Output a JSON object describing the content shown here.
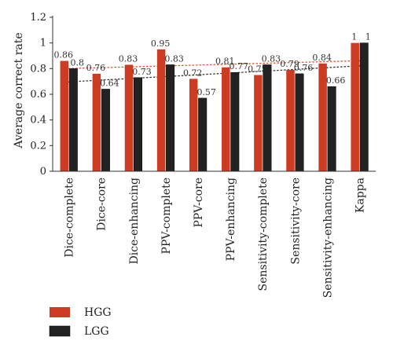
{
  "chart_data": {
    "type": "bar",
    "ylabel": "Average correct rate",
    "ylim": [
      0,
      1.2
    ],
    "yticks": [
      "0",
      "0.2",
      "0.4",
      "0.6",
      "0.8",
      "1",
      "1.2"
    ],
    "categories": [
      "Dice-complete",
      "Dice-core",
      "Dice-enhancing",
      "PPV-complete",
      "PPV-core",
      "PPV-enhancing",
      "Sensitivity-complete",
      "Sensitivity-core",
      "Sensitivity-enhancing",
      "Kappa"
    ],
    "series": [
      {
        "name": "HGG",
        "color": "#cc3b22",
        "values": [
          0.86,
          0.76,
          0.83,
          0.95,
          0.72,
          0.81,
          0.75,
          0.79,
          0.84,
          1
        ],
        "labels": [
          "0.86",
          "0.76",
          "0.83",
          "0.95",
          "0.72",
          "0.81",
          "0.75",
          "0.79",
          "0.84",
          "1"
        ]
      },
      {
        "name": "LGG",
        "color": "#222222",
        "values": [
          0.8,
          0.64,
          0.73,
          0.83,
          0.57,
          0.77,
          0.83,
          0.76,
          0.66,
          1
        ],
        "labels": [
          "0.8",
          "0.64",
          "0.73",
          "0.83",
          "0.57",
          "0.77",
          "0.83",
          "0.76",
          "0.66",
          "1"
        ]
      }
    ],
    "trendlines": [
      {
        "series": "HGG",
        "color": "#e0522e",
        "style": "dotted"
      },
      {
        "series": "LGG",
        "color": "#333333",
        "style": "dotted"
      }
    ],
    "legend": {
      "position": "bottom-left"
    },
    "grid": false
  }
}
